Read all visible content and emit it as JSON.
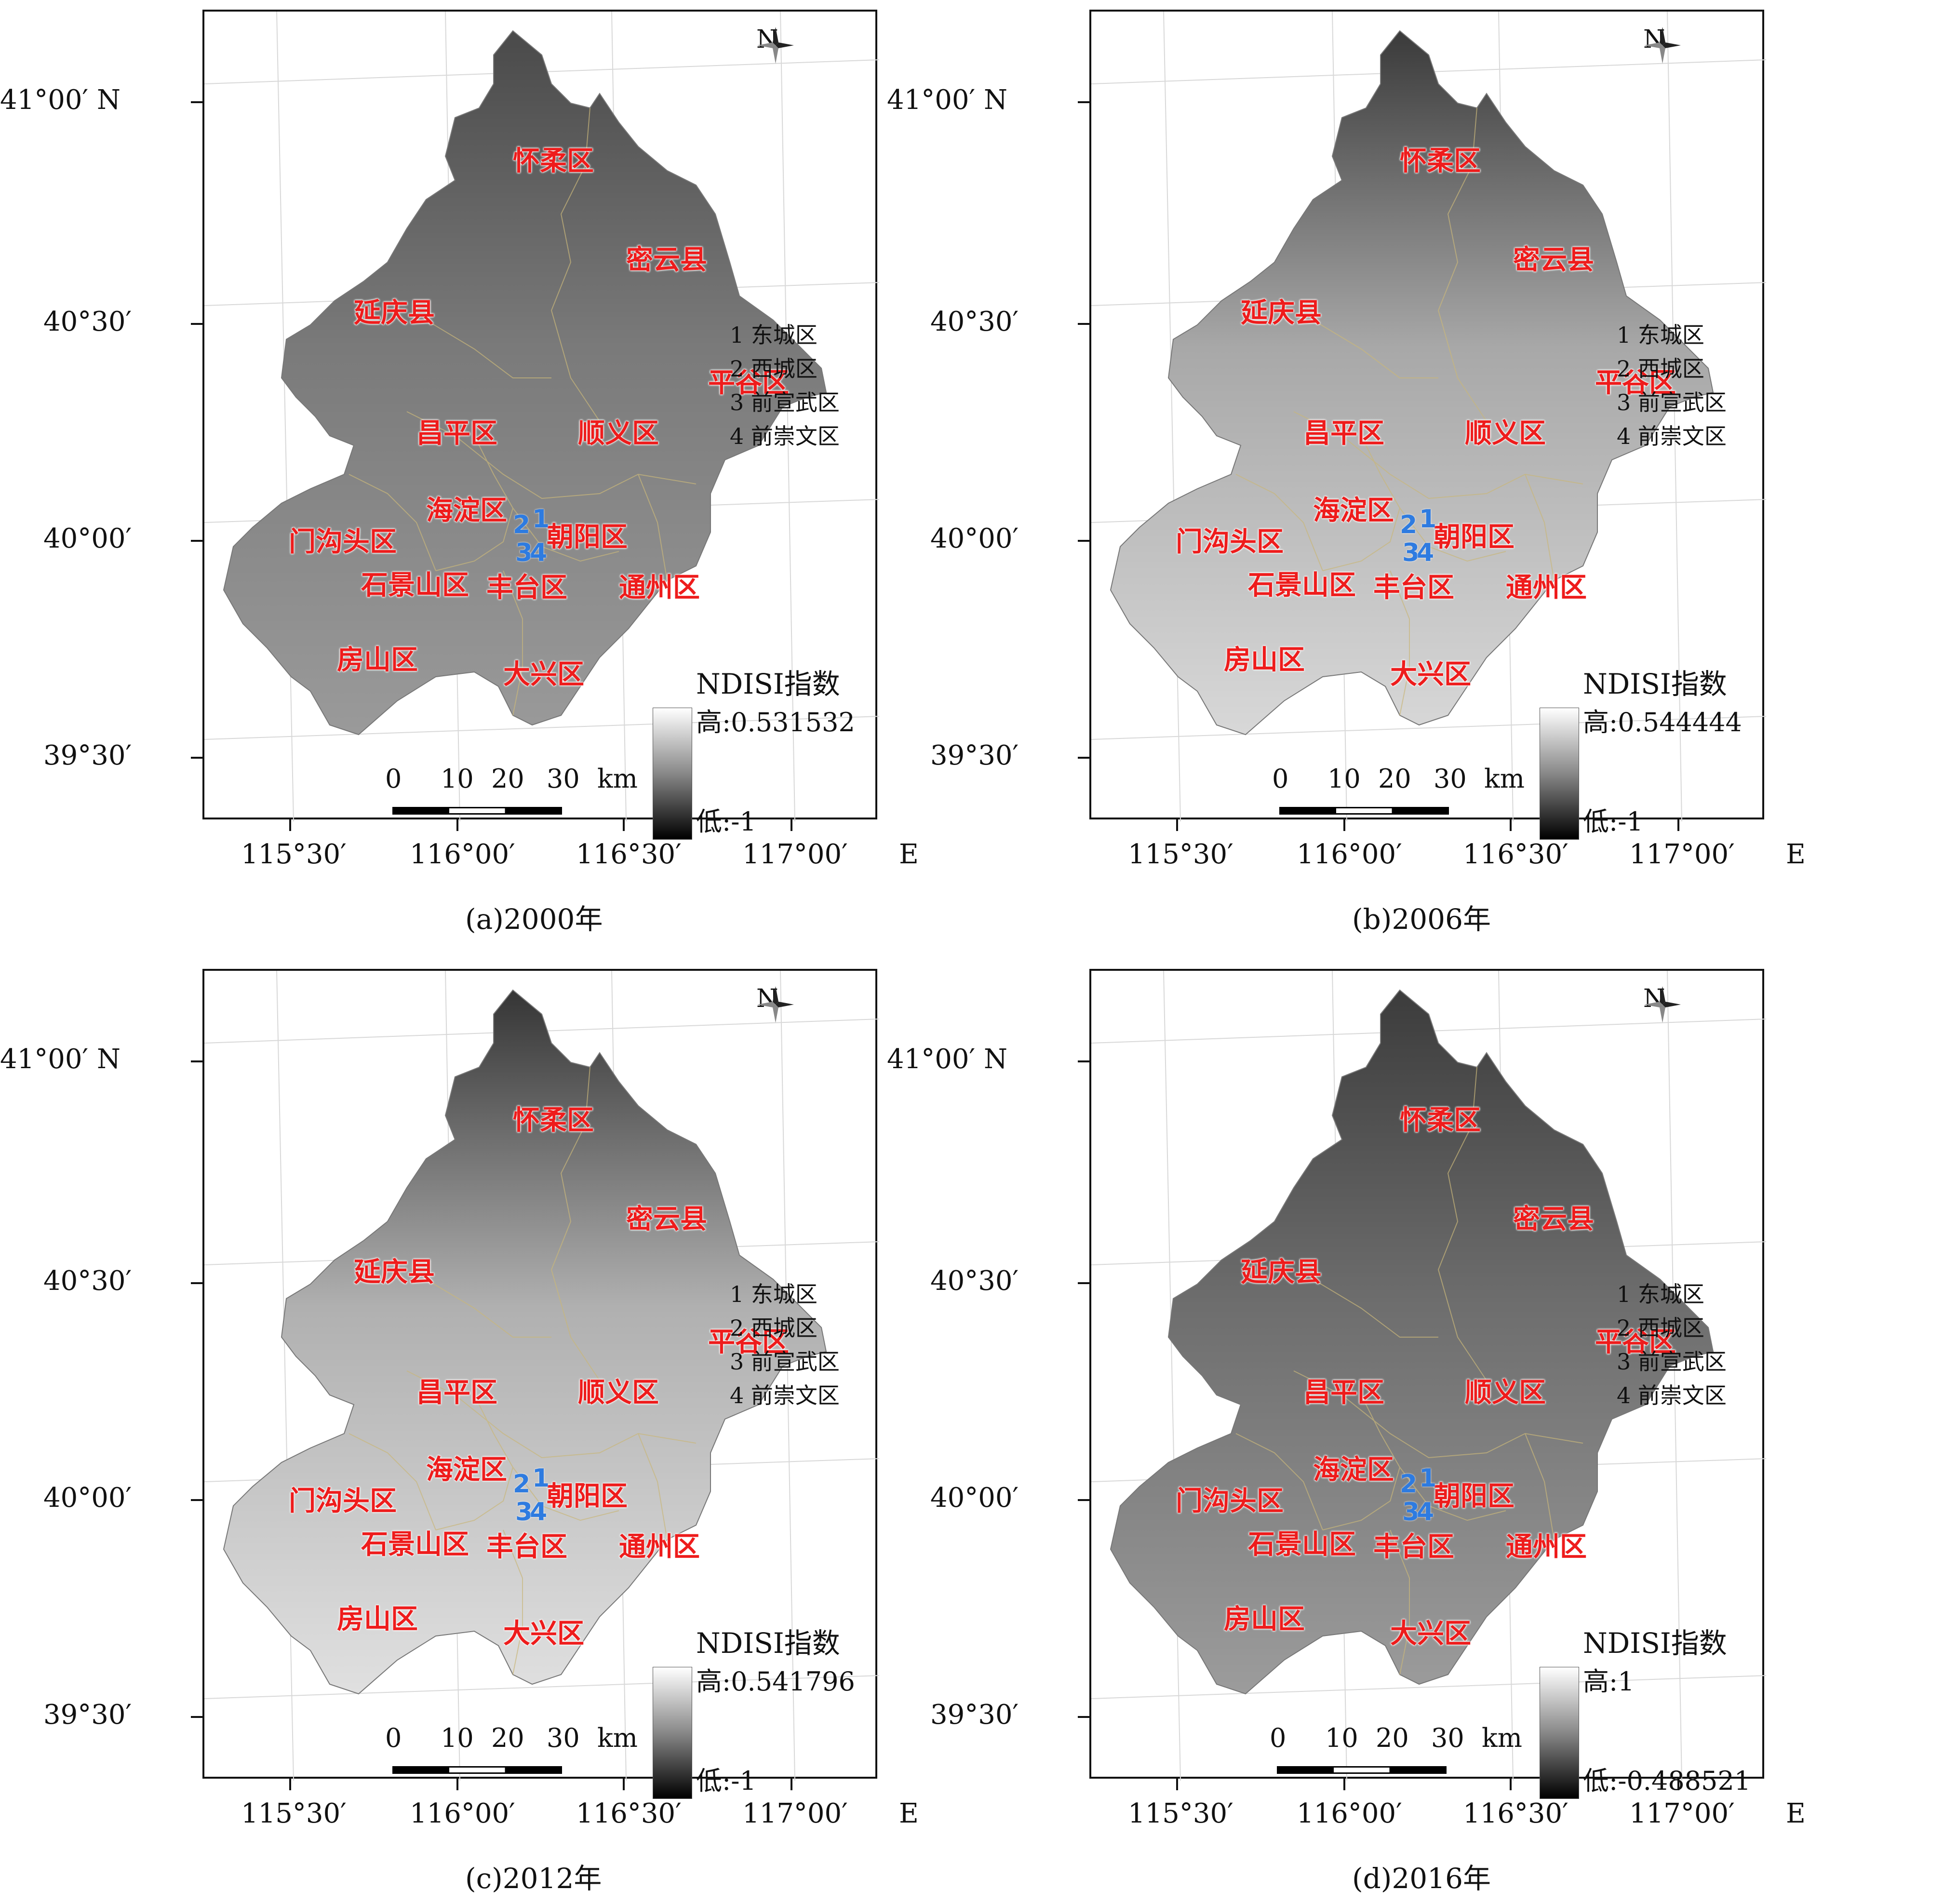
{
  "panels": [
    {
      "id": "a",
      "caption": "(a)2000年",
      "high": "高:0.531532",
      "low": "低:-1"
    },
    {
      "id": "b",
      "caption": "(b)2006年",
      "high": "高:0.544444",
      "low": "低:-1"
    },
    {
      "id": "c",
      "caption": "(c)2012年",
      "high": "高:0.541796",
      "low": "低:-1"
    },
    {
      "id": "d",
      "caption": "(d)2016年",
      "high": "高:1",
      "low": "低:-0.488521"
    }
  ],
  "index_title": "NDISI指数",
  "north": "N",
  "scale": {
    "labels": [
      "0",
      "10",
      "20",
      "30"
    ],
    "unit": "km"
  },
  "lat_labels": {
    "l41": "41°00′ N",
    "l4030": "40°30′",
    "l40": "40°00′",
    "l3930": "39°30′"
  },
  "lon_labels": {
    "e1": "115°30′",
    "e2": "116°00′",
    "e3": "116°30′",
    "e4": "117°00′",
    "suffix": "E"
  },
  "districts": {
    "huairou": "怀柔区",
    "miyun": "密云县",
    "yanqing": "延庆县",
    "pinggu": "平谷区",
    "changping": "昌平区",
    "shunyi": "顺义区",
    "haidian": "海淀区",
    "chaoyang": "朝阳区",
    "mentougou": "门沟头区",
    "shijingshan": "石景山区",
    "fengtai": "丰台区",
    "tongzhou": "通州区",
    "fangshan": "房山区",
    "daxing": "大兴区"
  },
  "numbers": {
    "n2": "2",
    "n1": "1",
    "n3": "3",
    "n4": "4"
  },
  "legend": [
    "1 东城区",
    "2 西城区",
    "3 前宣武区",
    "4 前崇文区"
  ]
}
